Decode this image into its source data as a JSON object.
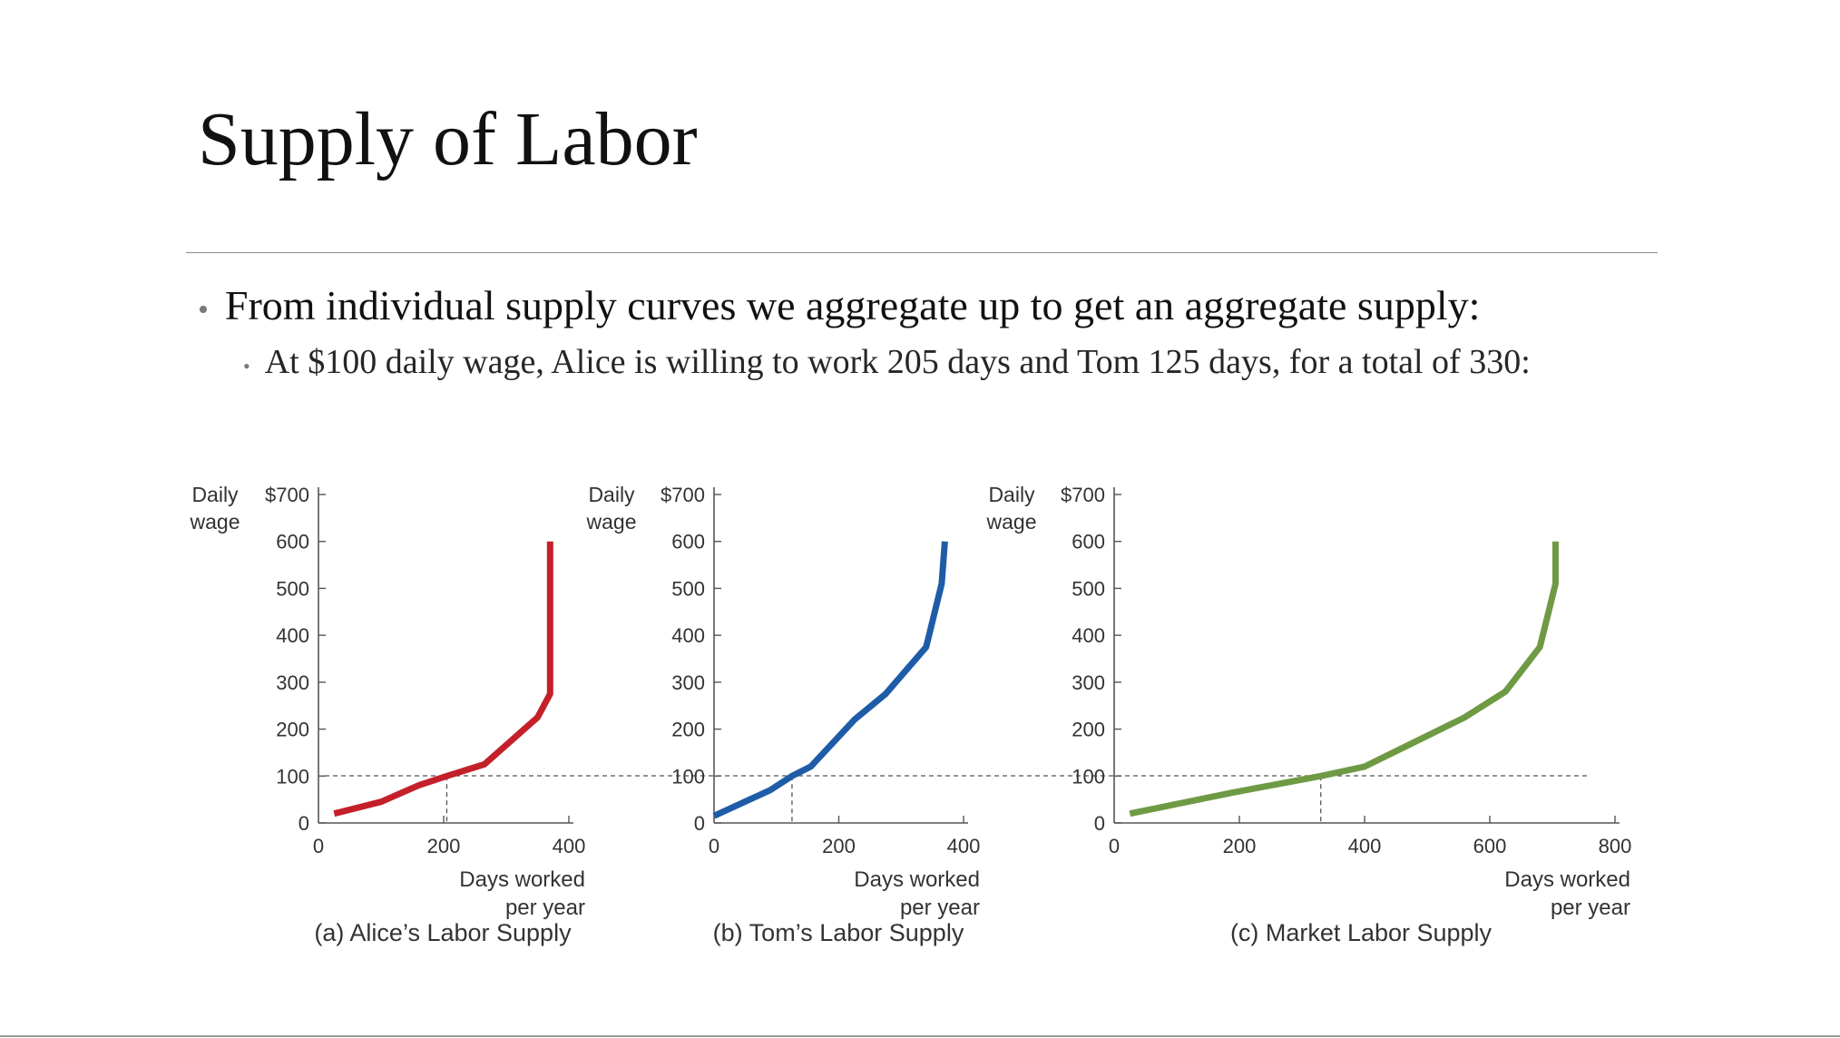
{
  "slide": {
    "title": "Supply of Labor",
    "bullets": [
      "From individual supply curves we aggregate up to get an aggregate supply:",
      "At $100 daily wage, Alice is willing to work 205 days and Tom 125 days, for a total of 330:"
    ]
  },
  "chart_data": [
    {
      "type": "line",
      "id": "alice",
      "caption": "(a) Alice’s Labor Supply",
      "ylabel": [
        "Daily",
        "wage"
      ],
      "xlabel": [
        "Days worked",
        "per year"
      ],
      "yticks": [
        "0",
        "100",
        "200",
        "300",
        "400",
        "500",
        "600",
        "$700"
      ],
      "ytick_values": [
        0,
        100,
        200,
        300,
        400,
        500,
        600,
        700
      ],
      "xticks": [
        "0",
        "200",
        "400"
      ],
      "xtick_values": [
        0,
        200,
        400
      ],
      "xlim": [
        0,
        400
      ],
      "ylim": [
        0,
        700
      ],
      "reference": {
        "x": 205,
        "y": 100
      },
      "color": "#c4202a",
      "series": [
        {
          "name": "Alice",
          "x": [
            25,
            100,
            160,
            205,
            265,
            350,
            370,
            370
          ],
          "y": [
            20,
            45,
            80,
            100,
            125,
            225,
            275,
            600
          ]
        }
      ]
    },
    {
      "type": "line",
      "id": "tom",
      "caption": "(b) Tom’s Labor Supply",
      "ylabel": [
        "Daily",
        "wage"
      ],
      "xlabel": [
        "Days worked",
        "per year"
      ],
      "yticks": [
        "0",
        "100",
        "200",
        "300",
        "400",
        "500",
        "600",
        "$700"
      ],
      "ytick_values": [
        0,
        100,
        200,
        300,
        400,
        500,
        600,
        700
      ],
      "xticks": [
        "0",
        "200",
        "400"
      ],
      "xtick_values": [
        0,
        200,
        400
      ],
      "xlim": [
        0,
        400
      ],
      "ylim": [
        0,
        700
      ],
      "reference": {
        "x": 125,
        "y": 100
      },
      "color": "#1f5ca8",
      "series": [
        {
          "name": "Tom",
          "x": [
            0,
            90,
            125,
            155,
            225,
            275,
            340,
            365,
            370
          ],
          "y": [
            15,
            70,
            100,
            120,
            220,
            275,
            375,
            510,
            600
          ]
        }
      ]
    },
    {
      "type": "line",
      "id": "market",
      "caption": "(c) Market Labor Supply",
      "ylabel": [
        "Daily",
        "wage"
      ],
      "xlabel": [
        "Days worked",
        "per year"
      ],
      "yticks": [
        "0",
        "100",
        "200",
        "300",
        "400",
        "500",
        "600",
        "$700"
      ],
      "ytick_values": [
        0,
        100,
        200,
        300,
        400,
        500,
        600,
        700
      ],
      "xticks": [
        "0",
        "200",
        "400",
        "600",
        "800"
      ],
      "xtick_values": [
        0,
        200,
        400,
        600,
        800
      ],
      "xlim": [
        0,
        800
      ],
      "ylim": [
        0,
        700
      ],
      "reference": {
        "x": 330,
        "y": 100
      },
      "color": "#6e9a44",
      "series": [
        {
          "name": "Market",
          "x": [
            25,
            190,
            330,
            400,
            560,
            625,
            680,
            705,
            705
          ],
          "y": [
            20,
            65,
            100,
            120,
            225,
            280,
            375,
            510,
            600
          ]
        }
      ]
    }
  ]
}
